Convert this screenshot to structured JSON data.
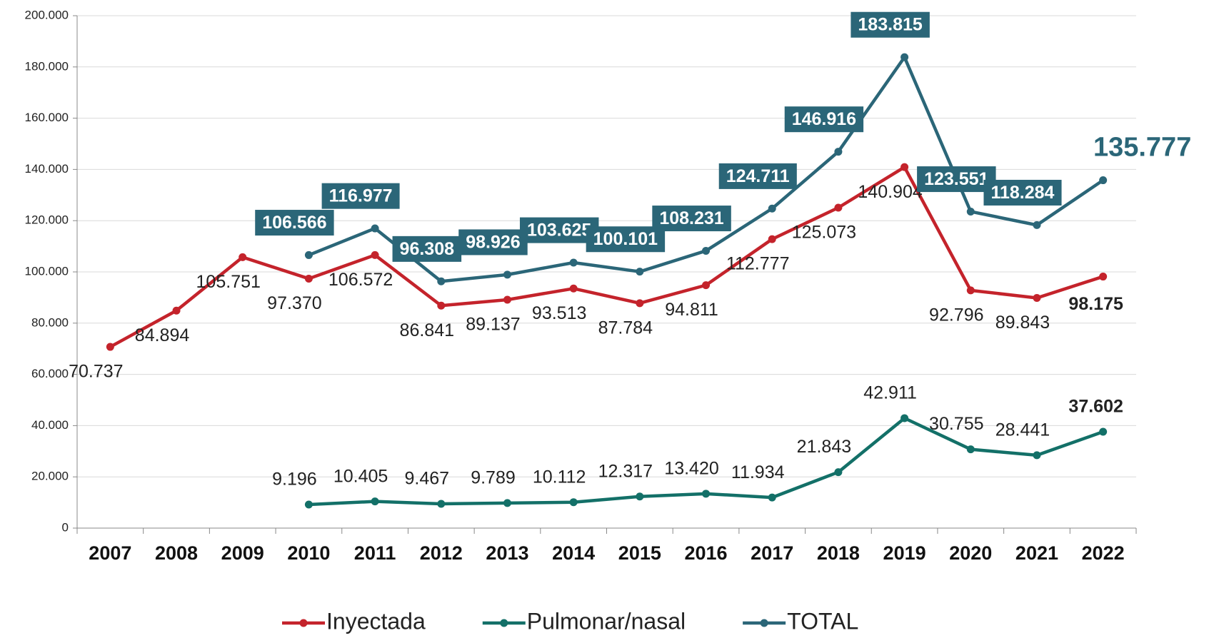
{
  "chart_data": {
    "type": "line",
    "categories": [
      "2007",
      "2008",
      "2009",
      "2010",
      "2011",
      "2012",
      "2013",
      "2014",
      "2015",
      "2016",
      "2017",
      "2018",
      "2019",
      "2020",
      "2021",
      "2022"
    ],
    "series": [
      {
        "name": "Inyectada",
        "color": "#c4232b",
        "values": [
          70737,
          84894,
          105751,
          97370,
          106572,
          86841,
          89137,
          93513,
          87784,
          94811,
          112777,
          125073,
          140904,
          92796,
          89843,
          98175
        ],
        "value_labels": [
          "70.737",
          "84.894",
          "105.751",
          "97.370",
          "106.572",
          "86.841",
          "89.137",
          "93.513",
          "87.784",
          "94.811",
          "112.777",
          "125.073",
          "140.904",
          "92.796",
          "89.843",
          "98.175"
        ]
      },
      {
        "name": "Pulmonar/nasal",
        "color": "#137068",
        "values": [
          null,
          null,
          null,
          9196,
          10405,
          9467,
          9789,
          10112,
          12317,
          13420,
          11934,
          21843,
          42911,
          30755,
          28441,
          37602
        ],
        "value_labels": [
          null,
          null,
          null,
          "9.196",
          "10.405",
          "9.467",
          "9.789",
          "10.112",
          "12.317",
          "13.420",
          "11.934",
          "21.843",
          "42.911",
          "30.755",
          "28.441",
          "37.602"
        ]
      },
      {
        "name": "TOTAL",
        "color": "#2b6678",
        "values": [
          null,
          null,
          null,
          106566,
          116977,
          96308,
          98926,
          103625,
          100101,
          108231,
          124711,
          146916,
          183815,
          123551,
          118284,
          135777
        ],
        "value_labels": [
          null,
          null,
          null,
          "106.566",
          "116.977",
          "96.308",
          "98.926",
          "103.625",
          "100.101",
          "108.231",
          "124.711",
          "146.916",
          "183.815",
          "123.551",
          "118.284",
          "135.777"
        ]
      }
    ],
    "ylim": [
      0,
      200000
    ],
    "yticks": [
      0,
      {
        "value": 20000,
        "label": "20.000"
      },
      {
        "value": 40000,
        "label": "40.000"
      },
      {
        "value": 60000,
        "label": "60.000"
      },
      {
        "value": 80000,
        "label": "80.000"
      },
      {
        "value": 100000,
        "label": "100.000"
      },
      {
        "value": 120000,
        "label": "120.000"
      },
      {
        "value": 140000,
        "label": "140.000"
      },
      {
        "value": 160000,
        "label": "160.000"
      },
      {
        "value": 180000,
        "label": "180.000"
      },
      {
        "value": 200000,
        "label": "200.000"
      }
    ],
    "grid": true,
    "legend": "bottom"
  }
}
